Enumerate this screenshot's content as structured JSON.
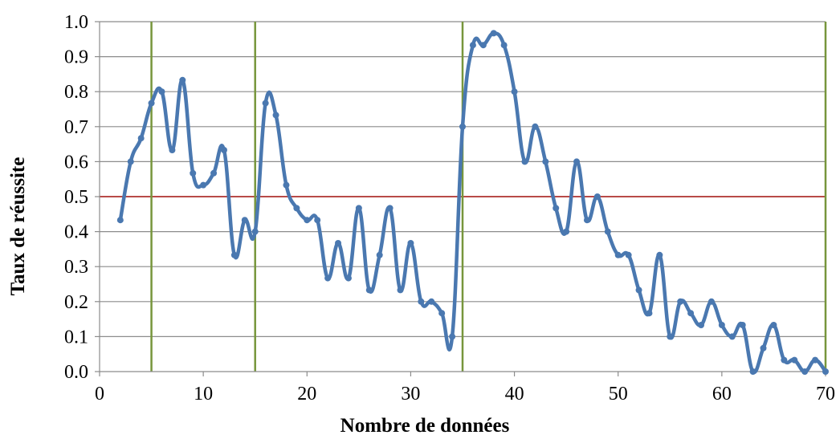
{
  "chart_data": {
    "type": "line",
    "title": "",
    "xlabel": "Nombre de données",
    "ylabel": "Taux de réussite",
    "xlim": [
      0,
      70
    ],
    "ylim": [
      0.0,
      1.0
    ],
    "x_ticks": [
      0,
      10,
      20,
      30,
      40,
      50,
      60,
      70
    ],
    "y_ticks": [
      "0.0",
      "0.1",
      "0.2",
      "0.3",
      "0.4",
      "0.5",
      "0.6",
      "0.7",
      "0.8",
      "0.9",
      "1.0"
    ],
    "grid": "horizontal",
    "legend": "none",
    "series": [
      {
        "color": "#4a78b0",
        "x": [
          2,
          3,
          4,
          5,
          6,
          7,
          8,
          9,
          10,
          11,
          12,
          13,
          14,
          15,
          16,
          17,
          18,
          19,
          20,
          21,
          22,
          23,
          24,
          25,
          26,
          27,
          28,
          29,
          30,
          31,
          32,
          33,
          34,
          35,
          36,
          37,
          38,
          39,
          40,
          41,
          42,
          43,
          44,
          45,
          46,
          47,
          48,
          49,
          50,
          51,
          52,
          53,
          54,
          55,
          56,
          57,
          58,
          59,
          60,
          61,
          62,
          63,
          64,
          65,
          66,
          67,
          68,
          69,
          70
        ],
        "y": [
          0.433,
          0.6,
          0.667,
          0.767,
          0.8,
          0.633,
          0.833,
          0.567,
          0.533,
          0.567,
          0.633,
          0.333,
          0.433,
          0.4,
          0.767,
          0.733,
          0.533,
          0.467,
          0.433,
          0.433,
          0.267,
          0.367,
          0.267,
          0.467,
          0.233,
          0.333,
          0.467,
          0.233,
          0.367,
          0.2,
          0.2,
          0.167,
          0.1,
          0.7,
          0.933,
          0.933,
          0.967,
          0.933,
          0.8,
          0.6,
          0.7,
          0.6,
          0.467,
          0.4,
          0.6,
          0.433,
          0.5,
          0.4,
          0.333,
          0.333,
          0.233,
          0.167,
          0.333,
          0.1,
          0.2,
          0.167,
          0.133,
          0.2,
          0.133,
          0.1,
          0.133,
          0.0,
          0.067,
          0.133,
          0.033,
          0.033,
          0.0,
          0.033,
          0.0
        ]
      }
    ],
    "reference_lines": [
      {
        "orientation": "horizontal",
        "value": 0.5,
        "color": "#b84a48"
      },
      {
        "orientation": "vertical",
        "value": 5,
        "color": "#77963c"
      },
      {
        "orientation": "vertical",
        "value": 15,
        "color": "#77963c"
      },
      {
        "orientation": "vertical",
        "value": 35,
        "color": "#77963c"
      },
      {
        "orientation": "vertical",
        "value": 70,
        "color": "#77963c"
      }
    ],
    "colors": {
      "grid": "#8c8c8c",
      "axis": "#8c8c8c"
    }
  }
}
